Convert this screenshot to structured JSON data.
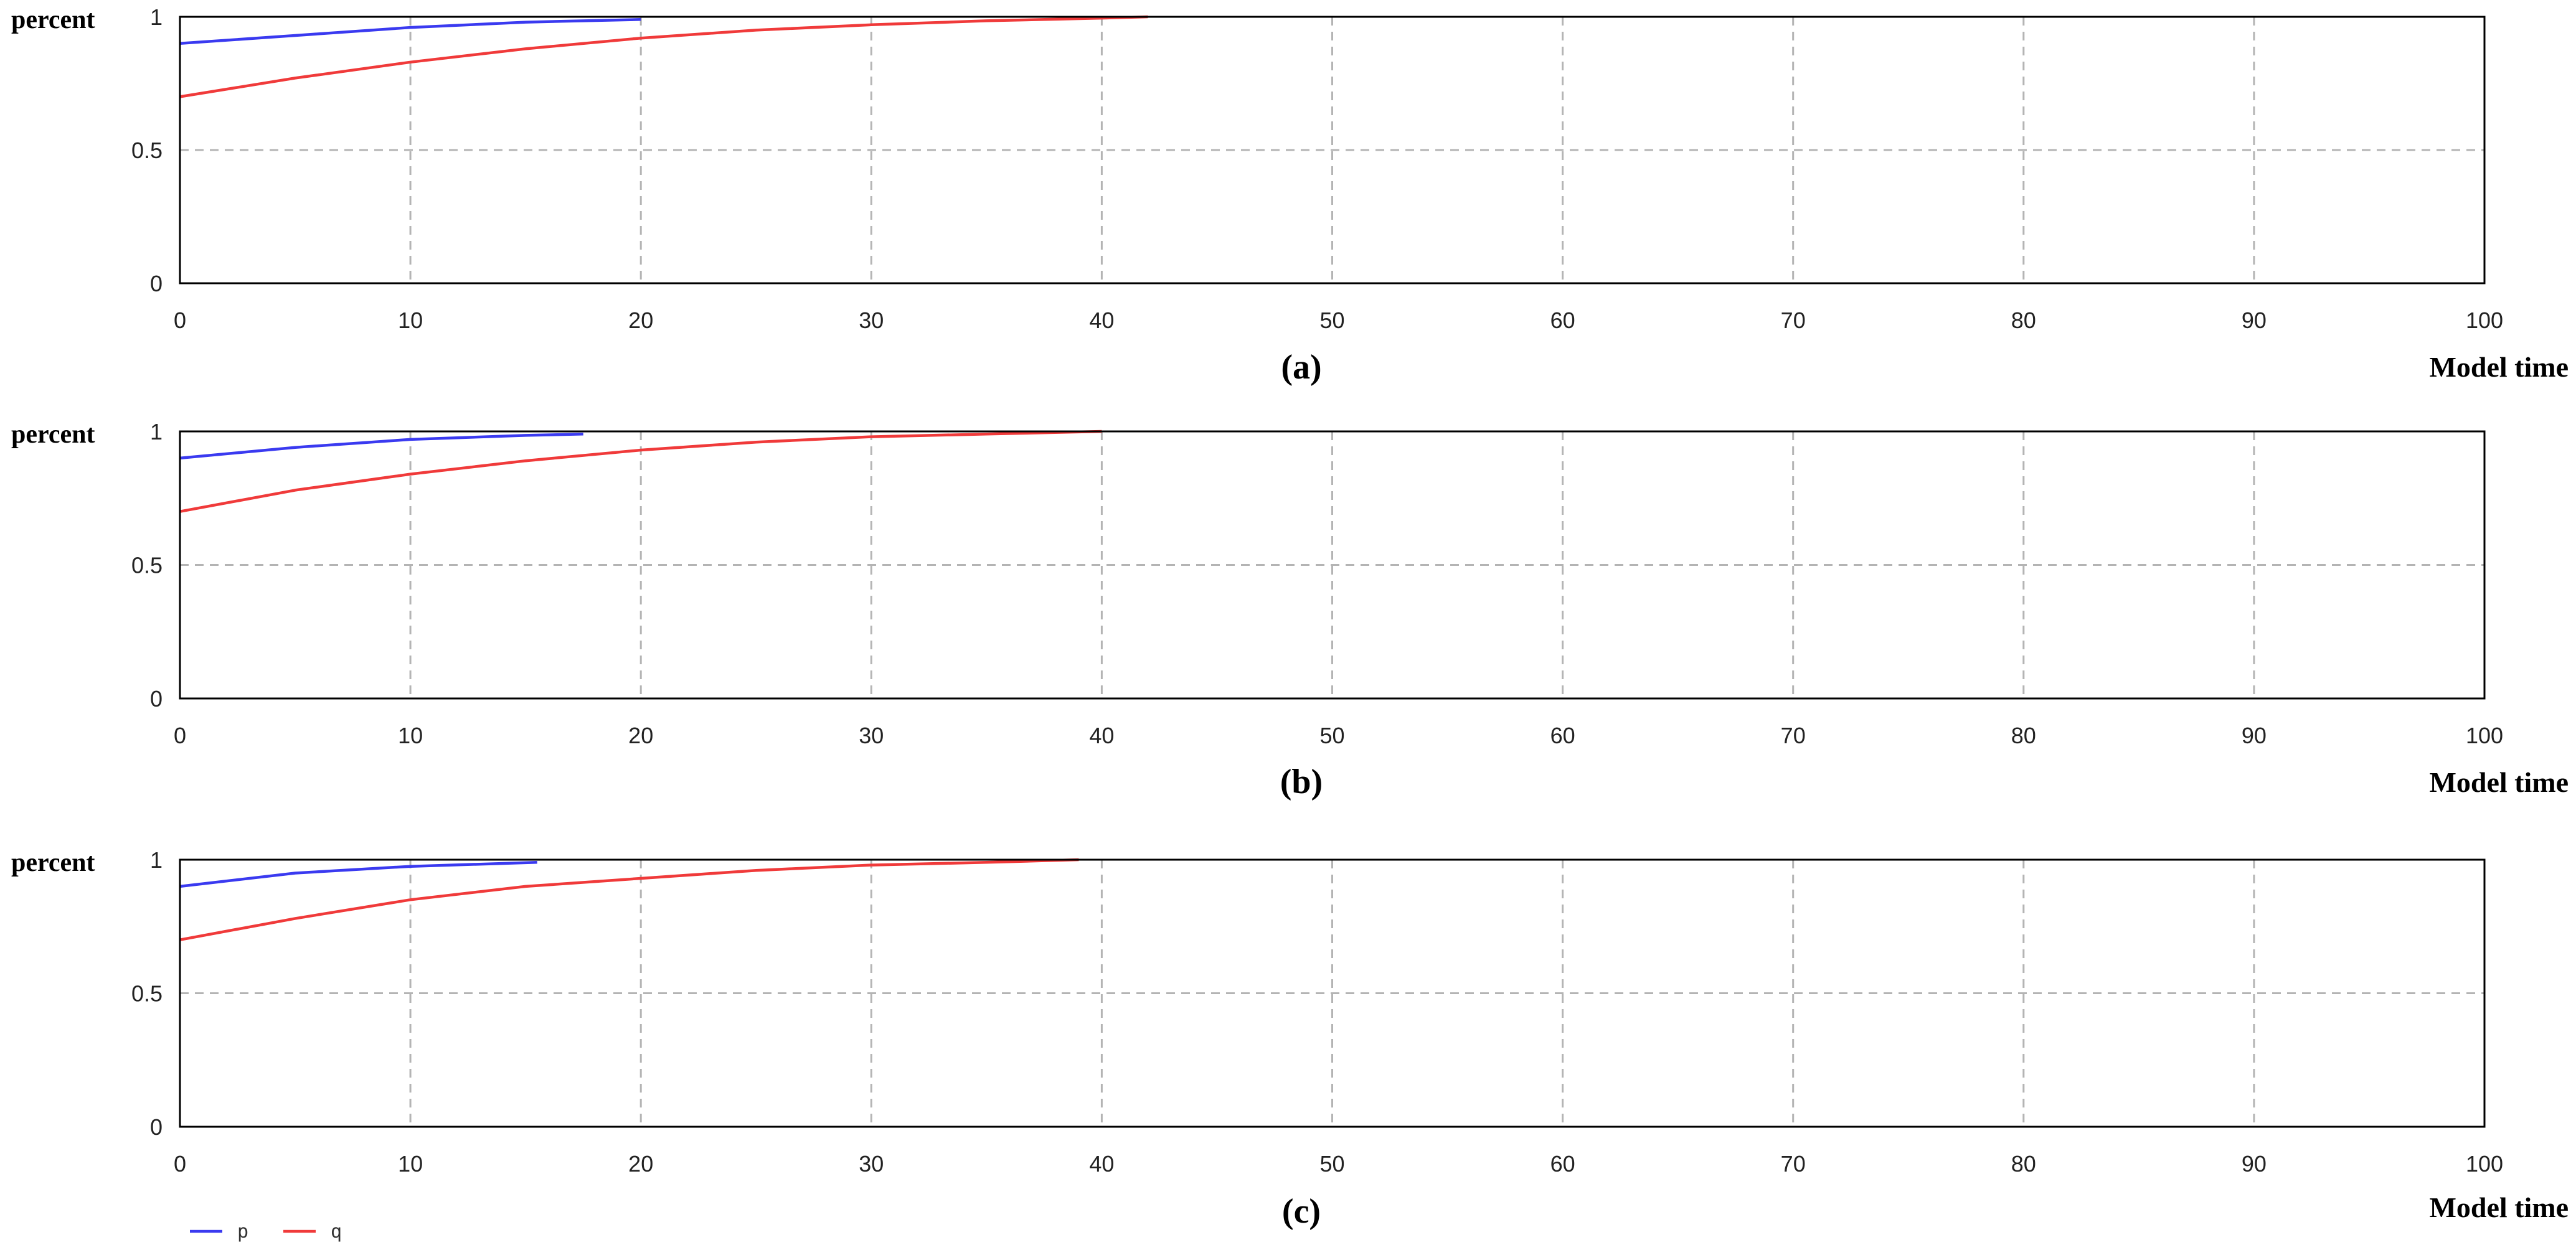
{
  "chart_data": [
    {
      "type": "line",
      "caption": "(a)",
      "xlabel": "Model time",
      "ylabel": "percent",
      "xlim": [
        0,
        100
      ],
      "ylim": [
        0,
        1
      ],
      "xticks": [
        "0",
        "10",
        "20",
        "30",
        "40",
        "50",
        "60",
        "70",
        "80",
        "90",
        "100"
      ],
      "yticks": [
        "0",
        "0.5",
        "1"
      ],
      "grid": true,
      "series": [
        {
          "name": "p",
          "color": "#3a3af0",
          "x": [
            0,
            5,
            10,
            15,
            20
          ],
          "y": [
            0.9,
            0.93,
            0.96,
            0.98,
            0.99
          ]
        },
        {
          "name": "q",
          "color": "#f03a3a",
          "x": [
            0,
            5,
            10,
            15,
            20,
            25,
            30,
            35,
            40,
            42
          ],
          "y": [
            0.7,
            0.77,
            0.83,
            0.88,
            0.92,
            0.95,
            0.97,
            0.985,
            0.995,
            1.0
          ]
        }
      ]
    },
    {
      "type": "line",
      "caption": "(b)",
      "xlabel": "Model time",
      "ylabel": "percent",
      "xlim": [
        0,
        100
      ],
      "ylim": [
        0,
        1
      ],
      "xticks": [
        "0",
        "10",
        "20",
        "30",
        "40",
        "50",
        "60",
        "70",
        "80",
        "90",
        "100"
      ],
      "yticks": [
        "0",
        "0.5",
        "1"
      ],
      "grid": true,
      "series": [
        {
          "name": "p",
          "color": "#3a3af0",
          "x": [
            0,
            5,
            10,
            15,
            17.5
          ],
          "y": [
            0.9,
            0.94,
            0.97,
            0.985,
            0.99
          ]
        },
        {
          "name": "q",
          "color": "#f03a3a",
          "x": [
            0,
            5,
            10,
            15,
            20,
            25,
            30,
            35,
            40
          ],
          "y": [
            0.7,
            0.78,
            0.84,
            0.89,
            0.93,
            0.96,
            0.98,
            0.99,
            1.0
          ]
        }
      ]
    },
    {
      "type": "line",
      "caption": "(c)",
      "xlabel": "Model time",
      "ylabel": "percent",
      "xlim": [
        0,
        100
      ],
      "ylim": [
        0,
        1
      ],
      "xticks": [
        "0",
        "10",
        "20",
        "30",
        "40",
        "50",
        "60",
        "70",
        "80",
        "90",
        "100"
      ],
      "yticks": [
        "0",
        "0.5",
        "1"
      ],
      "grid": true,
      "legend": {
        "placement": "bottom-left",
        "entries": [
          "p",
          "q"
        ]
      },
      "series": [
        {
          "name": "p",
          "color": "#3a3af0",
          "x": [
            0,
            5,
            10,
            15.5
          ],
          "y": [
            0.9,
            0.95,
            0.975,
            0.99
          ]
        },
        {
          "name": "q",
          "color": "#f03a3a",
          "x": [
            0,
            5,
            10,
            15,
            20,
            25,
            30,
            35,
            39
          ],
          "y": [
            0.7,
            0.78,
            0.85,
            0.9,
            0.93,
            0.96,
            0.98,
            0.99,
            1.0
          ]
        }
      ]
    }
  ],
  "colors": {
    "p": "#3a3af0",
    "q": "#f03a3a",
    "grid": "#b4b4b4",
    "axis": "#000000"
  }
}
